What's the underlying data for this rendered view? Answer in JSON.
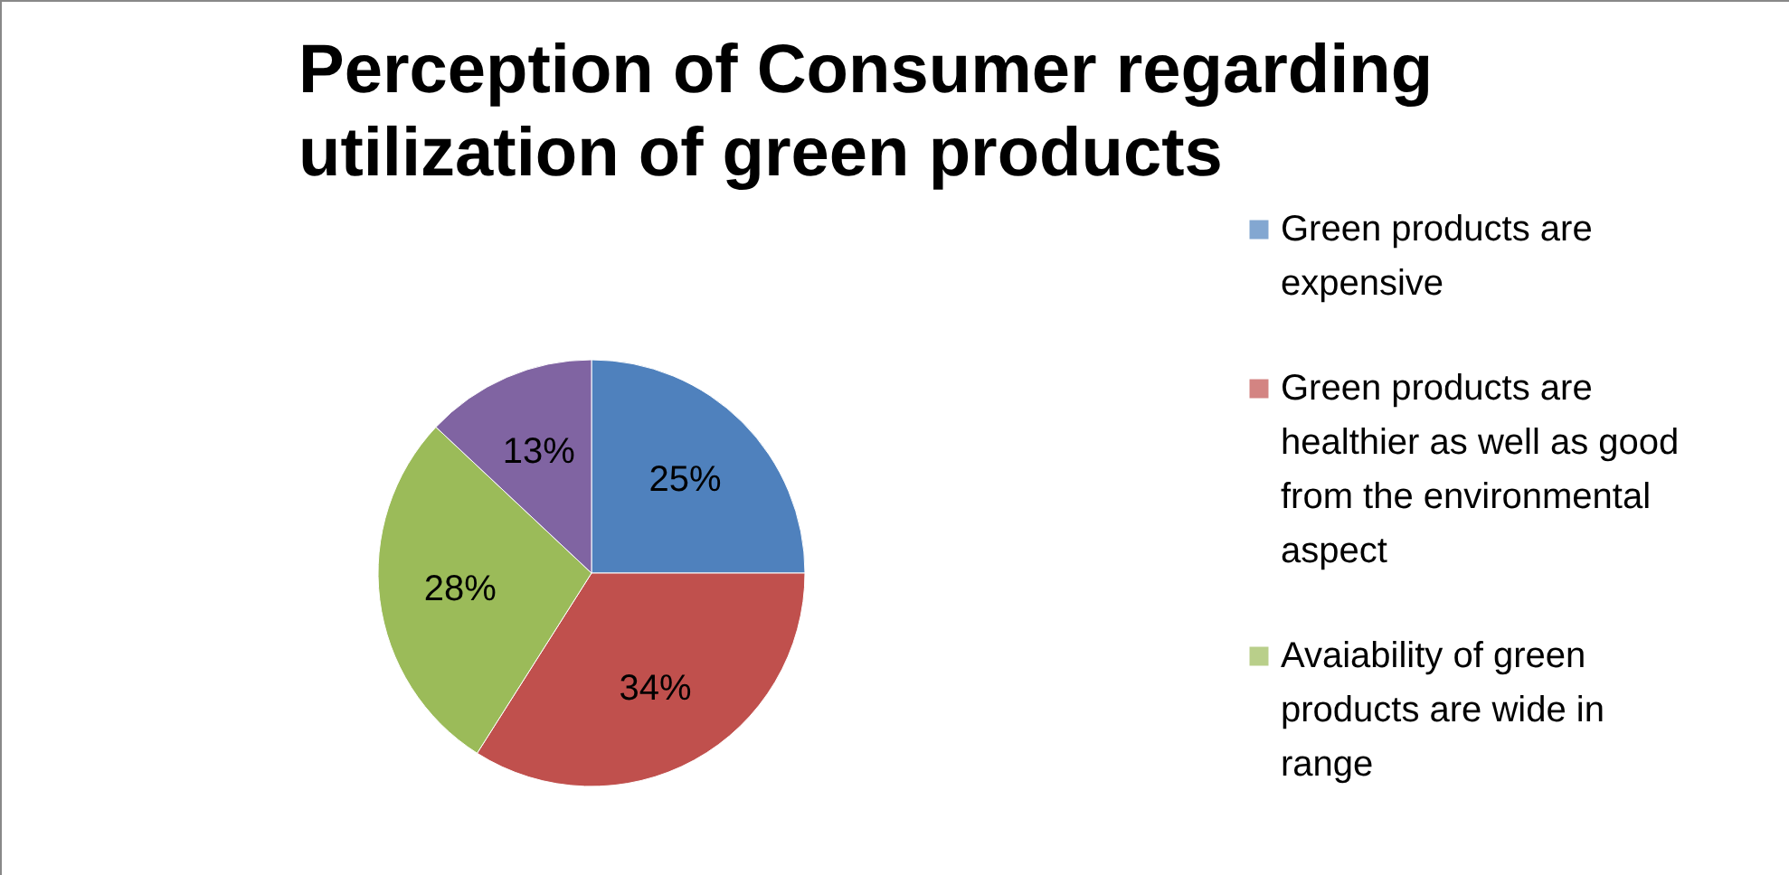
{
  "chart_data": {
    "type": "pie",
    "title": "Perception of Consumer regarding utilization of green products",
    "categories": [
      "Green products are expensive",
      "Green products are healthier as well as good from the environmental aspect",
      "Avaiability of green products are wide in range",
      null
    ],
    "values": [
      25,
      34,
      28,
      13
    ],
    "colors": [
      "#4f81bd",
      "#c0504d",
      "#9bbb59",
      "#8064a2"
    ],
    "value_labels": [
      "25%",
      "34%",
      "28%",
      "13%"
    ],
    "legend": "right"
  }
}
